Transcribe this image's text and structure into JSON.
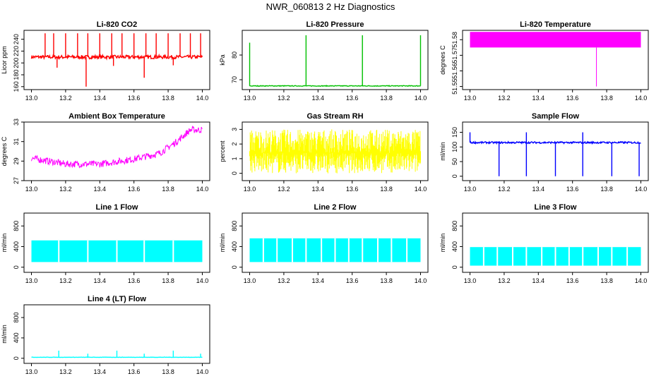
{
  "figure": {
    "title": "NWR_060813  2 Hz Diagnostics"
  },
  "colors": {
    "red": "#ff0000",
    "green": "#00c000",
    "magenta": "#ff00ff",
    "yellow": "#ffff00",
    "blue": "#0000ff",
    "cyan": "#00ffff",
    "axis": "#000000"
  },
  "chart_data": [
    {
      "id": "co2",
      "type": "line",
      "title": "Li-820 CO2",
      "ylabel": "Licor ppm",
      "x": [
        13.0,
        14.0
      ],
      "xticks": [
        13.0,
        13.2,
        13.4,
        13.6,
        13.8,
        14.0
      ],
      "xtick_labels": [
        "13.0",
        "13.2",
        "13.4",
        "13.6",
        "13.8",
        "14.0"
      ],
      "ylim": [
        155,
        255
      ],
      "yticks": [
        160,
        180,
        200,
        220,
        240
      ],
      "ytick_labels": [
        "160",
        "180",
        "200",
        "220",
        "240"
      ],
      "color": "red",
      "baseline": 210,
      "noise": 3,
      "spikes": [
        {
          "x": 13.08,
          "y": 250
        },
        {
          "x": 13.13,
          "y": 250
        },
        {
          "x": 13.2,
          "y": 250
        },
        {
          "x": 13.27,
          "y": 250
        },
        {
          "x": 13.33,
          "y": 250
        },
        {
          "x": 13.4,
          "y": 250
        },
        {
          "x": 13.47,
          "y": 250
        },
        {
          "x": 13.53,
          "y": 250
        },
        {
          "x": 13.6,
          "y": 250
        },
        {
          "x": 13.67,
          "y": 250
        },
        {
          "x": 13.73,
          "y": 250
        },
        {
          "x": 13.8,
          "y": 250
        },
        {
          "x": 13.87,
          "y": 250
        },
        {
          "x": 13.93,
          "y": 250
        },
        {
          "x": 13.99,
          "y": 250
        }
      ],
      "dips": [
        {
          "x": 13.32,
          "y": 160
        },
        {
          "x": 13.66,
          "y": 175
        },
        {
          "x": 13.15,
          "y": 192
        },
        {
          "x": 13.48,
          "y": 195
        },
        {
          "x": 13.83,
          "y": 196
        }
      ]
    },
    {
      "id": "pressure",
      "type": "line",
      "title": "Li-820 Pressure",
      "ylabel": "kPa",
      "x": [
        13.0,
        14.0
      ],
      "xticks": [
        13.0,
        13.2,
        13.4,
        13.6,
        13.8,
        14.0
      ],
      "xtick_labels": [
        "13.0",
        "13.2",
        "13.4",
        "13.6",
        "13.8",
        "14.0"
      ],
      "ylim": [
        66,
        90
      ],
      "yticks": [
        70,
        80
      ],
      "ytick_labels": [
        "70",
        "80"
      ],
      "color": "green",
      "baseline": 67.5,
      "noise": 0.15,
      "spikes": [
        {
          "x": 13.0,
          "y": 85
        },
        {
          "x": 13.33,
          "y": 88
        },
        {
          "x": 13.66,
          "y": 88
        },
        {
          "x": 14.0,
          "y": 88
        }
      ],
      "dips": []
    },
    {
      "id": "licor_temp",
      "type": "area",
      "title": "Li-820 Temperature",
      "ylabel": "degrees C",
      "x": [
        13.0,
        14.0
      ],
      "xticks": [
        13.0,
        13.2,
        13.4,
        13.6,
        13.8,
        14.0
      ],
      "xtick_labels": [
        "13.0",
        "13.2",
        "13.4",
        "13.6",
        "13.8",
        "14.0"
      ],
      "ylim": [
        51.548,
        51.586
      ],
      "yticks": [
        51.55,
        51.56,
        51.57,
        51.58
      ],
      "ytick_labels": [
        "51.55",
        "51.56",
        "51.57",
        "51.58"
      ],
      "color": "magenta",
      "band": [
        51.575,
        51.585
      ],
      "dips": [
        {
          "x": 13.74,
          "y": 51.55
        }
      ]
    },
    {
      "id": "ambient",
      "type": "line",
      "title": "Ambient Box Temperature",
      "ylabel": "degrees C",
      "x": [
        13.0,
        14.0
      ],
      "xticks": [
        13.0,
        13.2,
        13.4,
        13.6,
        13.8,
        14.0
      ],
      "xtick_labels": [
        "13.0",
        "13.2",
        "13.4",
        "13.6",
        "13.8",
        "14.0"
      ],
      "ylim": [
        27,
        33
      ],
      "yticks": [
        27,
        29,
        31,
        33
      ],
      "ytick_labels": [
        "27",
        "29",
        "31",
        "33"
      ],
      "color": "magenta",
      "noise": 0.35,
      "trend": [
        {
          "x": 13.0,
          "y": 29.3
        },
        {
          "x": 13.2,
          "y": 28.7
        },
        {
          "x": 13.4,
          "y": 28.7
        },
        {
          "x": 13.6,
          "y": 29.2
        },
        {
          "x": 13.75,
          "y": 29.8
        },
        {
          "x": 13.85,
          "y": 31.0
        },
        {
          "x": 13.93,
          "y": 32.2
        },
        {
          "x": 14.0,
          "y": 32.2
        }
      ]
    },
    {
      "id": "rh",
      "type": "line",
      "title": "Gas Stream RH",
      "ylabel": "percent",
      "x": [
        13.0,
        14.0
      ],
      "xticks": [
        13.0,
        13.2,
        13.4,
        13.6,
        13.8,
        14.0
      ],
      "xtick_labels": [
        "13.0",
        "13.2",
        "13.4",
        "13.6",
        "13.8",
        "14.0"
      ],
      "ylim": [
        -0.5,
        3.5
      ],
      "yticks": [
        0,
        1,
        2,
        3
      ],
      "ytick_labels": [
        "0",
        "1",
        "2",
        "3"
      ],
      "color": "yellow",
      "band": [
        0.0,
        3.0
      ],
      "center": 1.4
    },
    {
      "id": "sample_flow",
      "type": "line",
      "title": "Sample Flow",
      "ylabel": "ml/min",
      "x": [
        13.0,
        14.0
      ],
      "xticks": [
        13.0,
        13.2,
        13.4,
        13.6,
        13.8,
        14.0
      ],
      "xtick_labels": [
        "13.0",
        "13.2",
        "13.4",
        "13.6",
        "13.8",
        "14.0"
      ],
      "ylim": [
        -15,
        185
      ],
      "yticks": [
        0,
        50,
        100,
        150
      ],
      "ytick_labels": [
        "0",
        "50",
        "100",
        "150"
      ],
      "color": "blue",
      "baseline": 115,
      "noise": 3,
      "spikes": [
        {
          "x": 13.0,
          "y": 150
        },
        {
          "x": 13.33,
          "y": 150
        },
        {
          "x": 13.66,
          "y": 150
        }
      ],
      "dips": [
        {
          "x": 13.17,
          "y": 0
        },
        {
          "x": 13.33,
          "y": 0
        },
        {
          "x": 13.5,
          "y": 0
        },
        {
          "x": 13.66,
          "y": 0
        },
        {
          "x": 13.83,
          "y": 0
        },
        {
          "x": 13.99,
          "y": 0
        }
      ]
    },
    {
      "id": "line1",
      "type": "area",
      "title": "Line 1 Flow",
      "ylabel": "ml/min",
      "x": [
        13.0,
        14.0
      ],
      "xticks": [
        13.0,
        13.2,
        13.4,
        13.6,
        13.8,
        14.0
      ],
      "xtick_labels": [
        "13.0",
        "13.2",
        "13.4",
        "13.6",
        "13.8",
        "14.0"
      ],
      "ylim": [
        -100,
        1050
      ],
      "yticks": [
        0,
        400,
        800
      ],
      "ytick_labels": [
        "0",
        "400",
        "800"
      ],
      "color": "cyan",
      "band": [
        100,
        520
      ],
      "gaps": [
        13.16,
        13.33,
        13.5,
        13.66,
        13.83
      ]
    },
    {
      "id": "line2",
      "type": "area",
      "title": "Line 2 Flow",
      "ylabel": "ml/min",
      "x": [
        13.0,
        14.0
      ],
      "xticks": [
        13.0,
        13.2,
        13.4,
        13.6,
        13.8,
        14.0
      ],
      "xtick_labels": [
        "13.0",
        "13.2",
        "13.4",
        "13.6",
        "13.8",
        "14.0"
      ],
      "ylim": [
        -100,
        1050
      ],
      "yticks": [
        0,
        400,
        800
      ],
      "ytick_labels": [
        "0",
        "400",
        "800"
      ],
      "color": "cyan",
      "band": [
        100,
        560
      ],
      "gaps": [
        13.08,
        13.16,
        13.25,
        13.33,
        13.42,
        13.5,
        13.58,
        13.66,
        13.75,
        13.83,
        13.92
      ]
    },
    {
      "id": "line3",
      "type": "area",
      "title": "Line 3 Flow",
      "ylabel": "ml/min",
      "x": [
        13.0,
        14.0
      ],
      "xticks": [
        13.0,
        13.2,
        13.4,
        13.6,
        13.8,
        14.0
      ],
      "xtick_labels": [
        "13.0",
        "13.2",
        "13.4",
        "13.6",
        "13.8",
        "14.0"
      ],
      "ylim": [
        -100,
        1050
      ],
      "yticks": [
        0,
        400,
        800
      ],
      "ytick_labels": [
        "0",
        "400",
        "800"
      ],
      "color": "cyan",
      "band": [
        30,
        390
      ],
      "gaps": [
        13.08,
        13.16,
        13.25,
        13.33,
        13.42,
        13.5,
        13.58,
        13.66,
        13.75,
        13.83,
        13.92
      ]
    },
    {
      "id": "line4",
      "type": "line",
      "title": "Line 4 (LT) Flow",
      "ylabel": "ml/min",
      "x": [
        13.0,
        14.0
      ],
      "xticks": [
        13.0,
        13.2,
        13.4,
        13.6,
        13.8,
        14.0
      ],
      "xtick_labels": [
        "13.0",
        "13.2",
        "13.4",
        "13.6",
        "13.8",
        "14.0"
      ],
      "ylim": [
        -100,
        1050
      ],
      "yticks": [
        0,
        400,
        800
      ],
      "ytick_labels": [
        "0",
        "400",
        "800"
      ],
      "color": "cyan",
      "baseline": 20,
      "noise": 3,
      "spikes": [
        {
          "x": 13.16,
          "y": 150
        },
        {
          "x": 13.33,
          "y": 90
        },
        {
          "x": 13.5,
          "y": 150
        },
        {
          "x": 13.66,
          "y": 90
        },
        {
          "x": 13.83,
          "y": 150
        },
        {
          "x": 13.99,
          "y": 90
        }
      ],
      "dips": []
    }
  ]
}
